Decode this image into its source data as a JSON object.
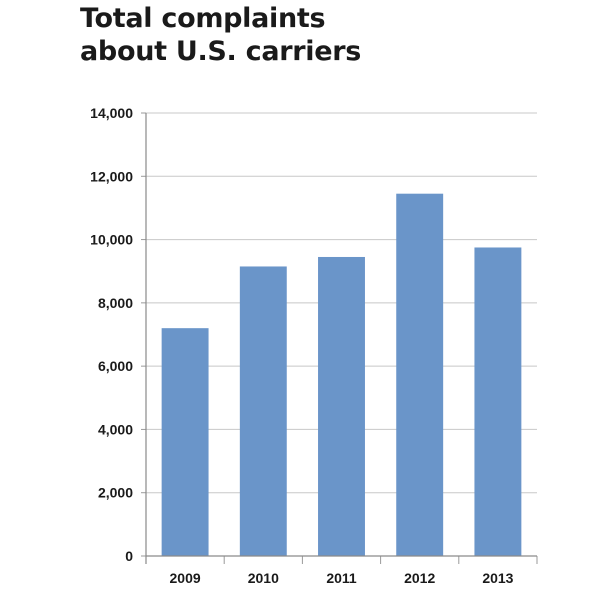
{
  "chart_data": {
    "type": "bar",
    "title_lines": [
      "Total complaints",
      "about U.S. carriers"
    ],
    "categories": [
      "2009",
      "2010",
      "2011",
      "2012",
      "2013"
    ],
    "values": [
      7200,
      9150,
      9450,
      11450,
      9750
    ],
    "ylim": [
      0,
      14000
    ],
    "yticks": [
      0,
      2000,
      4000,
      6000,
      8000,
      10000,
      12000,
      14000
    ],
    "ytick_labels": [
      "0",
      "2,000",
      "4,000",
      "6,000",
      "8,000",
      "10,000",
      "12,000",
      "14,000"
    ],
    "grid": true,
    "legend": "none",
    "bar_color": "#6a95c9",
    "grid_color": "#c8c8c8"
  }
}
